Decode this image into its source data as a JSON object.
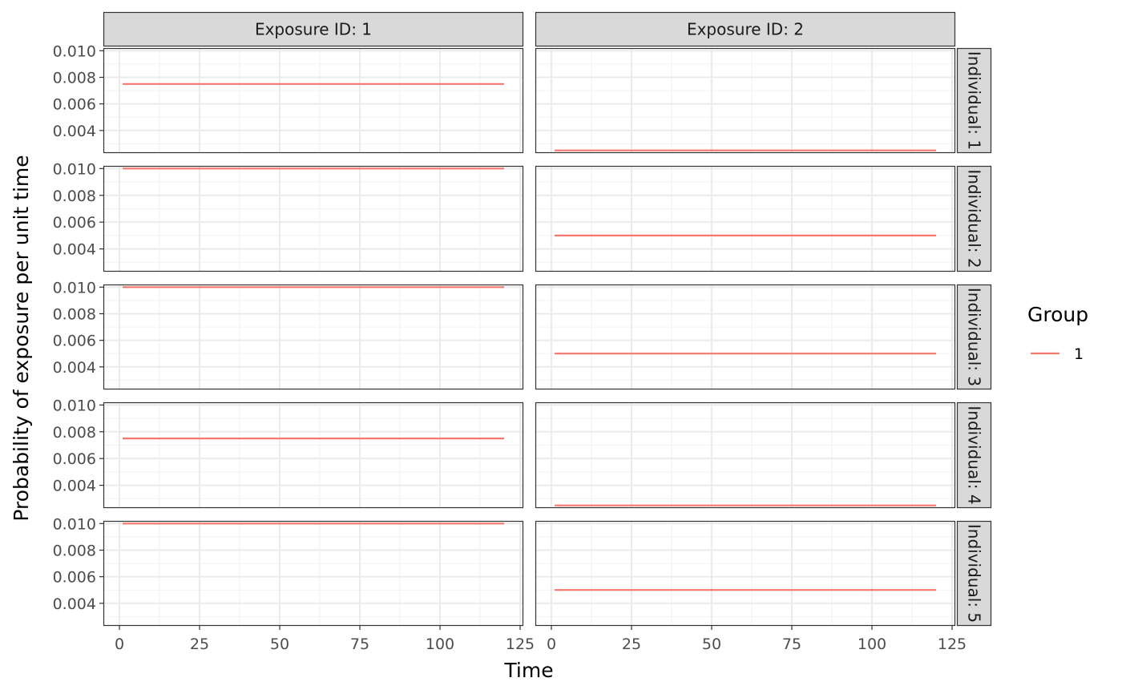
{
  "chart_data": {
    "type": "line",
    "facet_layout": "grid",
    "xlabel": "Time",
    "ylabel": "Probability of exposure per unit time",
    "xlim": [
      -5,
      126
    ],
    "ylim": [
      0.0023,
      0.0102
    ],
    "x_ticks": [
      0,
      25,
      50,
      75,
      100,
      125
    ],
    "y_ticks": [
      0.004,
      0.006,
      0.008,
      0.01
    ],
    "y_tick_labels": [
      "0.004",
      "0.006",
      "0.008",
      "0.010"
    ],
    "grid": true,
    "column_facets": [
      "Exposure ID: 1",
      "Exposure ID: 2"
    ],
    "row_facets": [
      "Individual: 1",
      "Individual: 2",
      "Individual: 3",
      "Individual: 4",
      "Individual: 5"
    ],
    "legend": {
      "title": "Group",
      "position": "right",
      "entries": [
        {
          "label": "1",
          "color": "#F8766D"
        }
      ]
    },
    "series_color": "#F8766D",
    "panels": [
      {
        "row": 0,
        "col": 0,
        "x": [
          1,
          120
        ],
        "y": [
          0.0075,
          0.0075
        ]
      },
      {
        "row": 0,
        "col": 1,
        "x": [
          1,
          120
        ],
        "y": [
          0.0025,
          0.0025
        ]
      },
      {
        "row": 1,
        "col": 0,
        "x": [
          1,
          120
        ],
        "y": [
          0.01,
          0.01
        ]
      },
      {
        "row": 1,
        "col": 1,
        "x": [
          1,
          120
        ],
        "y": [
          0.005,
          0.005
        ]
      },
      {
        "row": 2,
        "col": 0,
        "x": [
          1,
          120
        ],
        "y": [
          0.01,
          0.01
        ]
      },
      {
        "row": 2,
        "col": 1,
        "x": [
          1,
          120
        ],
        "y": [
          0.005,
          0.005
        ]
      },
      {
        "row": 3,
        "col": 0,
        "x": [
          1,
          120
        ],
        "y": [
          0.0075,
          0.0075
        ]
      },
      {
        "row": 3,
        "col": 1,
        "x": [
          1,
          120
        ],
        "y": [
          0.0025,
          0.0025
        ]
      },
      {
        "row": 4,
        "col": 0,
        "x": [
          1,
          120
        ],
        "y": [
          0.01,
          0.01
        ]
      },
      {
        "row": 4,
        "col": 1,
        "x": [
          1,
          120
        ],
        "y": [
          0.005,
          0.005
        ]
      }
    ]
  }
}
